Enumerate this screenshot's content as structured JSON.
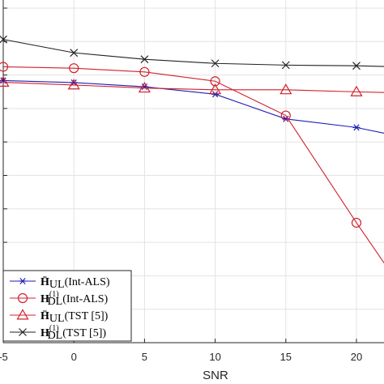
{
  "chart_data": {
    "type": "line",
    "xlabel": "SNR",
    "ylabel": "",
    "xlim": [
      -5,
      22
    ],
    "x_ticks": [
      -5,
      0,
      5,
      10,
      15,
      20
    ],
    "x_tick_labels": [
      "-5",
      "0",
      "5",
      "10",
      "15",
      "20"
    ],
    "y_fraction_lim": [
      0,
      1
    ],
    "grid": true,
    "legend_position": "bottom-left",
    "x": [
      -5,
      0,
      5,
      10,
      15,
      20,
      22
    ],
    "series": [
      {
        "name": "H̄UL(Int-ALS)",
        "legend_main": "H̄",
        "legend_sub": "UL",
        "legend_sup": "",
        "legend_suffix": "(Int-ALS)",
        "color": "#1f1fb4",
        "marker": "asterisk",
        "values": [
          0.765,
          0.759,
          0.747,
          0.725,
          0.653,
          0.628,
          0.611
        ],
        "marker_mask": [
          true,
          true,
          true,
          true,
          true,
          true,
          false
        ]
      },
      {
        "name": "H(1)DL(Int-ALS)",
        "legend_main": "H",
        "legend_sub": "DL",
        "legend_sup": "(1)",
        "legend_suffix": "(Int-ALS)",
        "color": "#d0202c",
        "marker": "circle",
        "values": [
          0.805,
          0.801,
          0.79,
          0.763,
          0.663,
          0.35,
          0.23
        ],
        "marker_mask": [
          true,
          true,
          true,
          true,
          true,
          true,
          false
        ]
      },
      {
        "name": "H̄UL(TST [5])",
        "legend_main": "H̄",
        "legend_sub": "UL",
        "legend_sup": "",
        "legend_suffix": "(TST [5])",
        "color": "#d0202c",
        "marker": "triangle",
        "values": [
          0.76,
          0.752,
          0.743,
          0.738,
          0.738,
          0.732,
          0.73
        ],
        "marker_mask": [
          true,
          true,
          true,
          true,
          true,
          true,
          false
        ]
      },
      {
        "name": "H(1)DL(TST [5])",
        "legend_main": "H",
        "legend_sub": "DL",
        "legend_sup": "(1)",
        "legend_suffix": "(TST [5])",
        "color": "#222222",
        "marker": "cross",
        "values": [
          0.885,
          0.846,
          0.827,
          0.815,
          0.81,
          0.808,
          0.806
        ],
        "marker_mask": [
          true,
          true,
          true,
          true,
          true,
          true,
          false
        ]
      }
    ]
  }
}
